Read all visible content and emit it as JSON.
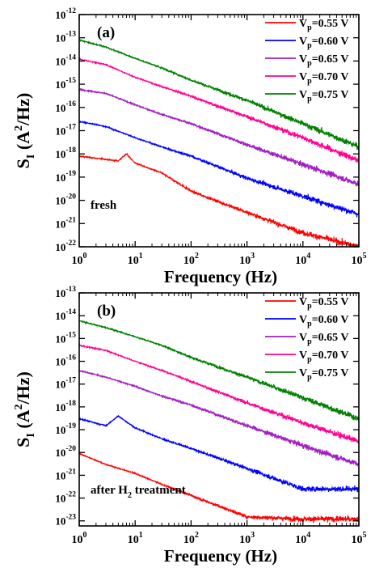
{
  "chart_data": [
    {
      "type": "line",
      "panel_label": "(a)",
      "annotation": "fresh",
      "xlabel": "Frequency (Hz)",
      "ylabel": "S_I (A^2/Hz)",
      "xscale": "log",
      "yscale": "log",
      "xlim": [
        1,
        100000
      ],
      "ylim": [
        1e-22,
        1e-12
      ],
      "x_ticks": [
        "10^0",
        "10^1",
        "10^2",
        "10^3",
        "10^4",
        "10^5"
      ],
      "y_ticks": [
        "10^-22",
        "10^-21",
        "10^-20",
        "10^-19",
        "10^-18",
        "10^-17",
        "10^-16",
        "10^-15",
        "10^-14",
        "10^-13",
        "10^-12"
      ],
      "legend_position": "top-right",
      "series": [
        {
          "name": "Vp=0.55 V",
          "color": "#ff0000",
          "x": [
            1,
            5,
            7,
            10,
            30,
            100,
            1000,
            10000,
            100000
          ],
          "y": [
            8e-19,
            5e-19,
            1e-18,
            4e-19,
            1.5e-19,
            2.5e-20,
            3e-21,
            4e-22,
            1e-22
          ]
        },
        {
          "name": "Vp=0.60 V",
          "color": "#0000ff",
          "x": [
            1,
            3,
            10,
            30,
            100,
            1000,
            10000,
            100000
          ],
          "y": [
            2.5e-17,
            1.5e-17,
            5e-18,
            2e-18,
            8e-19,
            9e-20,
            1.5e-20,
            2.5e-21
          ]
        },
        {
          "name": "Vp=0.65 V",
          "color": "#a020c0",
          "x": [
            1,
            3,
            10,
            30,
            100,
            1000,
            10000,
            100000
          ],
          "y": [
            6e-16,
            4e-16,
            1.3e-16,
            5e-17,
            2e-17,
            2.5e-18,
            3.5e-19,
            5e-20
          ]
        },
        {
          "name": "Vp=0.70 V",
          "color": "#ff0090",
          "x": [
            1,
            3,
            10,
            30,
            100,
            1000,
            10000,
            100000
          ],
          "y": [
            1.2e-14,
            7e-15,
            2e-15,
            8e-16,
            3e-16,
            4e-17,
            5e-18,
            5e-19
          ]
        },
        {
          "name": "Vp=0.75 V",
          "color": "#008000",
          "x": [
            1,
            3,
            10,
            30,
            100,
            1000,
            10000,
            100000
          ],
          "y": [
            8e-14,
            4e-14,
            1.3e-14,
            5e-15,
            1.5e-15,
            2e-16,
            2e-17,
            2e-18
          ]
        }
      ]
    },
    {
      "type": "line",
      "panel_label": "(b)",
      "annotation": "after H2 treatment",
      "xlabel": "Frequency (Hz)",
      "ylabel": "S_I (A^2/Hz)",
      "xscale": "log",
      "yscale": "log",
      "xlim": [
        1,
        100000
      ],
      "ylim": [
        6e-24,
        1e-13
      ],
      "x_ticks": [
        "10^0",
        "10^1",
        "10^2",
        "10^3",
        "10^4",
        "10^5"
      ],
      "y_ticks": [
        "10^-23",
        "10^-22",
        "10^-21",
        "10^-20",
        "10^-19",
        "10^-18",
        "10^-17",
        "10^-16",
        "10^-15",
        "10^-14",
        "10^-13"
      ],
      "legend_position": "top-right",
      "series": [
        {
          "name": "Vp=0.55 V",
          "color": "#ff0000",
          "x": [
            1,
            3,
            10,
            30,
            100,
            1000,
            10000,
            100000
          ],
          "y": [
            9e-21,
            3e-21,
            1.2e-21,
            4e-22,
            1.3e-22,
            1.5e-23,
            1.2e-23,
            1.2e-23
          ]
        },
        {
          "name": "Vp=0.60 V",
          "color": "#0000ff",
          "x": [
            1,
            3,
            5,
            10,
            30,
            100,
            1000,
            10000,
            100000
          ],
          "y": [
            3e-19,
            1.5e-19,
            4e-19,
            1.2e-19,
            4e-20,
            1.5e-20,
            2e-21,
            2.5e-22,
            2.5e-22
          ]
        },
        {
          "name": "Vp=0.65 V",
          "color": "#a020c0",
          "x": [
            1,
            3,
            10,
            30,
            100,
            1000,
            10000,
            100000
          ],
          "y": [
            4e-17,
            2e-17,
            8e-18,
            3e-18,
            1.2e-18,
            1.5e-19,
            2e-20,
            3e-21
          ]
        },
        {
          "name": "Vp=0.70 V",
          "color": "#ff0090",
          "x": [
            1,
            3,
            10,
            30,
            100,
            1000,
            10000,
            100000
          ],
          "y": [
            5e-16,
            3e-16,
            1e-16,
            4e-17,
            1.3e-17,
            1.5e-18,
            2e-19,
            3e-20
          ]
        },
        {
          "name": "Vp=0.75 V",
          "color": "#008000",
          "x": [
            1,
            3,
            10,
            30,
            100,
            1000,
            10000,
            100000
          ],
          "y": [
            6e-15,
            3e-15,
            1.2e-15,
            5e-16,
            1.5e-16,
            2e-17,
            2.5e-18,
            3e-19
          ]
        }
      ]
    }
  ]
}
